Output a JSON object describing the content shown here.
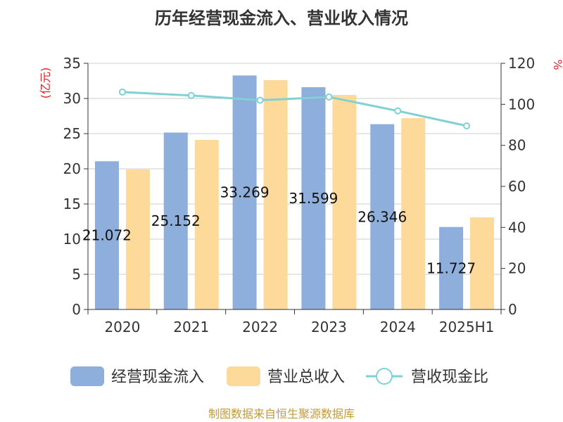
{
  "chart_data": {
    "type": "bar",
    "title": "历年经营现金流入、营业收入情况",
    "categories": [
      "2020",
      "2021",
      "2022",
      "2023",
      "2024",
      "2025H1"
    ],
    "series": [
      {
        "name": "经营现金流入",
        "kind": "bar",
        "axis": "left",
        "color": "#8eaedb",
        "values": [
          21.072,
          25.152,
          33.269,
          31.599,
          26.346,
          11.727
        ],
        "labels": [
          "21.072",
          "25.152",
          "33.269",
          "31.599",
          "26.346",
          "11.727"
        ]
      },
      {
        "name": "营业总收入",
        "kind": "bar",
        "axis": "left",
        "color": "#fdd99a",
        "values": [
          19.9,
          24.1,
          32.6,
          30.5,
          27.2,
          13.1
        ]
      },
      {
        "name": "营收现金比",
        "kind": "line",
        "axis": "right",
        "color": "#7fd1d3",
        "values": [
          106.0,
          104.3,
          102.0,
          103.6,
          96.8,
          89.5
        ]
      }
    ],
    "y_left": {
      "unit": "(亿元)",
      "ylim": [
        0,
        35
      ],
      "ticks": [
        "0",
        "5",
        "10",
        "15",
        "20",
        "25",
        "30",
        "35"
      ]
    },
    "y_right": {
      "unit": "%",
      "ylim": [
        0,
        120
      ],
      "ticks": [
        "0",
        "20",
        "40",
        "60",
        "80",
        "100",
        "120"
      ]
    },
    "grid": true,
    "legend_position": "bottom"
  },
  "footer": {
    "source": "制图数据来自恒生聚源数据库"
  }
}
